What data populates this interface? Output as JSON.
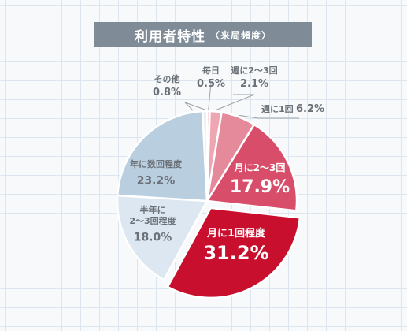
{
  "title": "利用者特性",
  "subtitle": "〈来局頻度〉",
  "colors": {
    "header_bg": "#7f8b97",
    "label_dark": "#6b7178",
    "label_light": "#ffffff",
    "leader_line": "#9aa2aa"
  },
  "chart_data": {
    "type": "pie",
    "title": "利用者特性",
    "subtitle": "〈来局頻度〉",
    "unit": "%",
    "start": "12 o'clock, clockwise",
    "slices": [
      {
        "label": "毎日",
        "value": 0.5,
        "value_text": "0.5",
        "color": "#f6c5cc"
      },
      {
        "label": "週に2～3回",
        "value": 2.1,
        "value_text": "2.1",
        "color": "#efa6b3"
      },
      {
        "label": "週に1回",
        "value": 6.2,
        "value_text": "6.2",
        "color": "#e58a9b"
      },
      {
        "label": "月に2～3回",
        "value": 17.9,
        "value_text": "17.9",
        "color": "#d84d6a"
      },
      {
        "label": "月に1回程度",
        "value": 31.2,
        "value_text": "31.2",
        "color": "#c8102e"
      },
      {
        "label": "半年に2～3回程度",
        "value": 18.0,
        "value_text": "18.0",
        "color": "#dce7f1"
      },
      {
        "label": "年に数回程度",
        "value": 23.2,
        "value_text": "23.2",
        "color": "#b9cfe0"
      },
      {
        "label": "その他",
        "value": 0.8,
        "value_text": "0.8",
        "color": "#e9eef3"
      }
    ]
  }
}
